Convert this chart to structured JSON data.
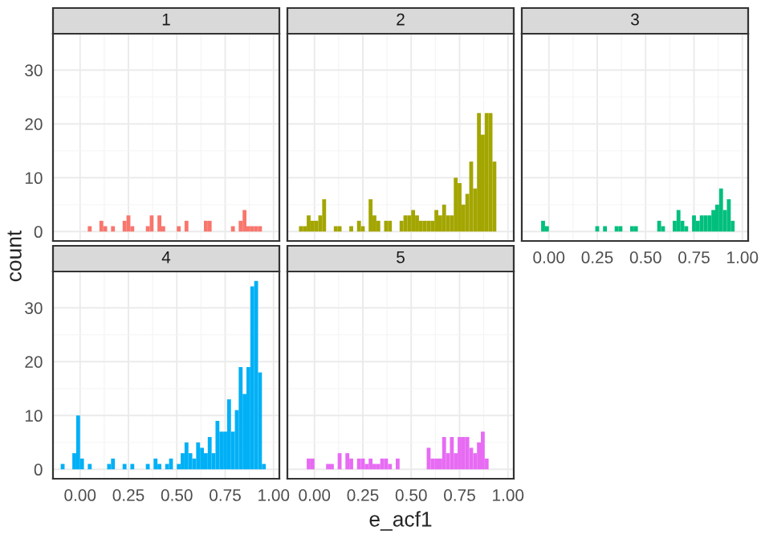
{
  "chart_data": [
    {
      "type": "histogram",
      "title": "1",
      "color": "#F8766D",
      "tick_labels": "y",
      "grid": true,
      "xlim": [
        -0.14,
        1.03
      ],
      "ylim": [
        -1.75,
        36.75
      ],
      "xticks": [
        0,
        0.25,
        0.5,
        0.75,
        1
      ],
      "yticks": [
        0,
        10,
        20,
        30
      ],
      "bins": [
        -0.1,
        -0.08,
        -0.06,
        -0.04,
        -0.02,
        0,
        0.02,
        0.04,
        0.06,
        0.08,
        0.1,
        0.12,
        0.14,
        0.16,
        0.18,
        0.2,
        0.22,
        0.24,
        0.26,
        0.28,
        0.3,
        0.32,
        0.34,
        0.36,
        0.38,
        0.4,
        0.42,
        0.44,
        0.46,
        0.48,
        0.5,
        0.52,
        0.54,
        0.56,
        0.58,
        0.6,
        0.62,
        0.64,
        0.66,
        0.68,
        0.7,
        0.72,
        0.74,
        0.76,
        0.78,
        0.8,
        0.82,
        0.84,
        0.86,
        0.88,
        0.9,
        0.92,
        0.94,
        0.96
      ],
      "values": [
        0,
        0,
        0,
        0,
        0,
        0,
        0,
        1,
        0,
        0,
        2,
        1,
        0,
        1,
        0,
        0,
        2,
        3,
        1,
        0,
        0,
        0,
        1,
        3,
        0,
        3,
        1,
        0,
        0,
        0,
        1,
        0,
        2,
        0,
        0,
        0,
        0,
        2,
        2,
        0,
        0,
        0,
        0,
        0,
        1,
        0,
        2,
        4,
        1,
        1,
        1,
        1,
        0
      ]
    },
    {
      "type": "histogram",
      "title": "2",
      "color": "#A3A500",
      "tick_labels": false,
      "grid": true,
      "xlim": [
        -0.14,
        1.03
      ],
      "ylim": [
        -1.75,
        36.75
      ],
      "xticks": [
        0,
        0.25,
        0.5,
        0.75,
        1
      ],
      "yticks": [
        0,
        10,
        20,
        30
      ],
      "bins": [
        -0.1,
        -0.08,
        -0.06,
        -0.04,
        -0.02,
        0,
        0.02,
        0.04,
        0.06,
        0.08,
        0.1,
        0.12,
        0.14,
        0.16,
        0.18,
        0.2,
        0.22,
        0.24,
        0.26,
        0.28,
        0.3,
        0.32,
        0.34,
        0.36,
        0.38,
        0.4,
        0.42,
        0.44,
        0.46,
        0.48,
        0.5,
        0.52,
        0.54,
        0.56,
        0.58,
        0.6,
        0.62,
        0.64,
        0.66,
        0.68,
        0.7,
        0.72,
        0.74,
        0.76,
        0.78,
        0.8,
        0.82,
        0.84,
        0.86,
        0.88,
        0.9,
        0.92,
        0.94,
        0.96
      ],
      "values": [
        0,
        1,
        1,
        3,
        2,
        2,
        3,
        6,
        0,
        0,
        1,
        1,
        0,
        0,
        1,
        0,
        2,
        1,
        0,
        6,
        3,
        2,
        0,
        2,
        2,
        0,
        0,
        2,
        3,
        3,
        4,
        3,
        2,
        2,
        2,
        2,
        4,
        3,
        5,
        3,
        3,
        10,
        9,
        5,
        7,
        13,
        8,
        22,
        18,
        22,
        22,
        13,
        0
      ]
    },
    {
      "type": "histogram",
      "title": "3",
      "color": "#00BF7D",
      "tick_labels": "x",
      "grid": true,
      "xlim": [
        -0.14,
        1.03
      ],
      "ylim": [
        -1.75,
        36.75
      ],
      "xticks": [
        {
          "value": 0,
          "label": "0.00"
        },
        {
          "value": 0.25,
          "label": "0.25"
        },
        {
          "value": 0.5,
          "label": "0.50"
        },
        {
          "value": 0.75,
          "label": "0.75"
        },
        {
          "value": 1,
          "label": "1.00"
        }
      ],
      "yticks": [
        0,
        10,
        20,
        30
      ],
      "bins": [
        -0.1,
        -0.08,
        -0.06,
        -0.04,
        -0.02,
        0,
        0.02,
        0.04,
        0.06,
        0.08,
        0.1,
        0.12,
        0.14,
        0.16,
        0.18,
        0.2,
        0.22,
        0.24,
        0.26,
        0.28,
        0.3,
        0.32,
        0.34,
        0.36,
        0.38,
        0.4,
        0.42,
        0.44,
        0.46,
        0.48,
        0.5,
        0.52,
        0.54,
        0.56,
        0.58,
        0.6,
        0.62,
        0.64,
        0.66,
        0.68,
        0.7,
        0.72,
        0.74,
        0.76,
        0.78,
        0.8,
        0.82,
        0.84,
        0.86,
        0.88,
        0.9,
        0.92,
        0.94,
        0.96
      ],
      "values": [
        0,
        0,
        0,
        2,
        1,
        0,
        0,
        0,
        0,
        0,
        0,
        0,
        0,
        0,
        0,
        0,
        0,
        1,
        0,
        1,
        0,
        0,
        1,
        1,
        0,
        0,
        1,
        1,
        0,
        0,
        0,
        0,
        0,
        2,
        1,
        0,
        0,
        2,
        4,
        2,
        1,
        0,
        3,
        2,
        3,
        3,
        3,
        4,
        5,
        8,
        4,
        6,
        2
      ]
    },
    {
      "type": "histogram",
      "title": "4",
      "color": "#00B0F6",
      "ylabel": "count",
      "grid": true,
      "xlim": [
        -0.14,
        1.03
      ],
      "ylim": [
        -1.75,
        36.75
      ],
      "xticks": [
        {
          "value": 0,
          "label": "0.00"
        },
        {
          "value": 0.25,
          "label": "0.25"
        },
        {
          "value": 0.5,
          "label": "0.50"
        },
        {
          "value": 0.75,
          "label": "0.75"
        },
        {
          "value": 1,
          "label": "1.00"
        }
      ],
      "yticks": [
        0,
        10,
        20,
        30
      ],
      "bins": [
        -0.1,
        -0.08,
        -0.06,
        -0.04,
        -0.02,
        0,
        0.02,
        0.04,
        0.06,
        0.08,
        0.1,
        0.12,
        0.14,
        0.16,
        0.18,
        0.2,
        0.22,
        0.24,
        0.26,
        0.28,
        0.3,
        0.32,
        0.34,
        0.36,
        0.38,
        0.4,
        0.42,
        0.44,
        0.46,
        0.48,
        0.5,
        0.52,
        0.54,
        0.56,
        0.58,
        0.6,
        0.62,
        0.64,
        0.66,
        0.68,
        0.7,
        0.72,
        0.74,
        0.76,
        0.78,
        0.8,
        0.82,
        0.84,
        0.86,
        0.88,
        0.9,
        0.92,
        0.94,
        0.96
      ],
      "values": [
        1,
        0,
        0,
        3,
        10,
        2,
        0,
        1,
        0,
        0,
        0,
        0,
        1,
        2,
        0,
        0,
        1,
        0,
        1,
        0,
        0,
        0,
        1,
        0,
        2,
        1,
        0,
        1,
        2,
        0,
        1,
        3,
        5,
        3,
        2,
        5,
        4,
        3,
        6,
        3,
        9,
        7,
        7,
        13,
        7,
        11,
        19,
        14,
        19,
        34,
        35,
        18,
        1
      ]
    },
    {
      "type": "histogram",
      "title": "5",
      "color": "#E76BF3",
      "xlabel": "e_acf1",
      "tick_labels": "x",
      "grid": true,
      "xlim": [
        -0.14,
        1.03
      ],
      "ylim": [
        -1.75,
        36.75
      ],
      "xticks": [
        {
          "value": 0,
          "label": "0.00"
        },
        {
          "value": 0.25,
          "label": "0.25"
        },
        {
          "value": 0.5,
          "label": "0.50"
        },
        {
          "value": 0.75,
          "label": "0.75"
        },
        {
          "value": 1,
          "label": "1.00"
        }
      ],
      "yticks": [
        0,
        10,
        20,
        30
      ],
      "bins": [
        -0.1,
        -0.08,
        -0.06,
        -0.04,
        -0.02,
        0,
        0.02,
        0.04,
        0.06,
        0.08,
        0.1,
        0.12,
        0.14,
        0.16,
        0.18,
        0.2,
        0.22,
        0.24,
        0.26,
        0.28,
        0.3,
        0.32,
        0.34,
        0.36,
        0.38,
        0.4,
        0.42,
        0.44,
        0.46,
        0.48,
        0.5,
        0.52,
        0.54,
        0.56,
        0.58,
        0.6,
        0.62,
        0.64,
        0.66,
        0.68,
        0.7,
        0.72,
        0.74,
        0.76,
        0.78,
        0.8,
        0.82,
        0.84,
        0.86,
        0.88,
        0.9,
        0.92,
        0.94,
        0.96
      ],
      "values": [
        0,
        0,
        0,
        2,
        2,
        0,
        0,
        0,
        1,
        1,
        0,
        3,
        0,
        3,
        2,
        0,
        2,
        2,
        1,
        2,
        1,
        1,
        2,
        2,
        1,
        0,
        2,
        0,
        0,
        0,
        0,
        0,
        0,
        0,
        4,
        2,
        2,
        2,
        6,
        3,
        6,
        3,
        6,
        6,
        6,
        4,
        3,
        5,
        7,
        2,
        0,
        0,
        0
      ]
    }
  ]
}
